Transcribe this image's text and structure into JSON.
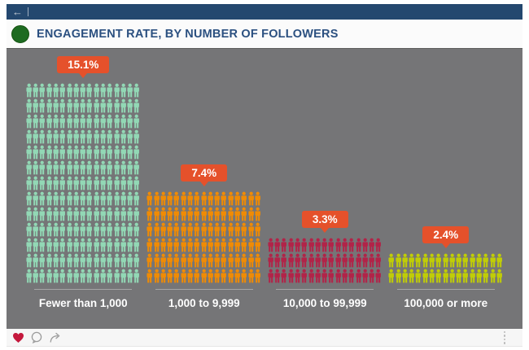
{
  "topbar": {
    "back_glyph": "←"
  },
  "header": {
    "title": "ENGAGEMENT RATE, BY NUMBER OF FOLLOWERS",
    "logo_color": "#1e6b21"
  },
  "chart_data": {
    "type": "bar",
    "variant": "pictogram-people",
    "title": "ENGAGEMENT RATE, BY NUMBER OF FOLLOWERS",
    "categories": [
      "Fewer than 1,000",
      "1,000 to 9,999",
      "10,000 to 99,999",
      "100,000 or more"
    ],
    "values": [
      15.1,
      7.4,
      3.3,
      2.4
    ],
    "value_labels": [
      "15.1%",
      "7.4%",
      "3.3%",
      "2.4%"
    ],
    "unit": "percent",
    "icon": "person",
    "icons_per_row": 17,
    "rows_per_bar": [
      13,
      6,
      3,
      2
    ],
    "bar_colors": [
      "#92d8b5",
      "#f08b04",
      "#b22348",
      "#c0cd06"
    ],
    "callout_color": "#e5512b",
    "label_color": "#ffffff",
    "background_color": "#757577",
    "legend": "none",
    "xlabel": "",
    "ylabel": ""
  },
  "footer": {
    "heart_color": "#c4183c",
    "icon_color": "#9b9b9b"
  }
}
